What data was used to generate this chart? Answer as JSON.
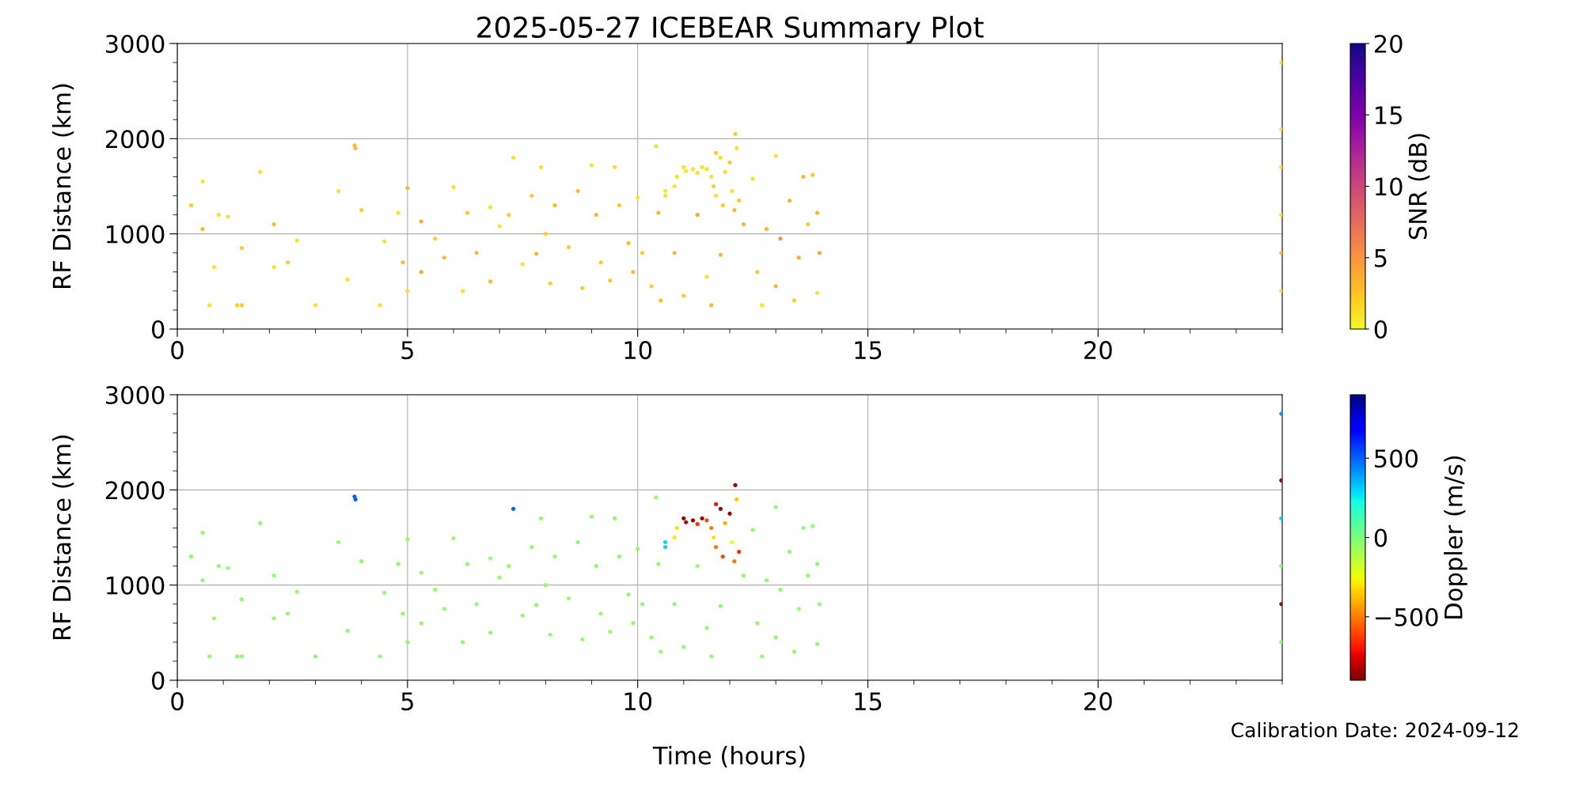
{
  "chart_data": [
    {
      "type": "scatter",
      "title": "2025-05-27 ICEBEAR Summary Plot",
      "ylabel": "RF Distance (km)",
      "clabel": "SNR (dB)",
      "xlim": [
        0,
        24
      ],
      "xticks": [
        0,
        5,
        10,
        15,
        20
      ],
      "ylim": [
        0,
        3000
      ],
      "yticks": [
        0,
        1000,
        2000,
        3000
      ],
      "clim": [
        0,
        20
      ],
      "cticks": [
        0,
        5,
        10,
        15,
        20
      ],
      "grid": true,
      "x": [
        0.3,
        0.55,
        0.55,
        0.7,
        0.8,
        0.9,
        1.1,
        1.3,
        1.4,
        1.4,
        1.8,
        2.1,
        2.1,
        2.4,
        2.6,
        3.0,
        3.5,
        3.7,
        3.85,
        3.87,
        4.0,
        4.4,
        4.5,
        4.8,
        4.9,
        5.0,
        5.0,
        5.3,
        5.3,
        5.6,
        5.8,
        6.0,
        6.2,
        6.3,
        6.5,
        6.8,
        6.8,
        7.0,
        7.2,
        7.3,
        7.5,
        7.7,
        7.8,
        7.9,
        8.0,
        8.1,
        8.2,
        8.5,
        8.7,
        8.8,
        9.0,
        9.1,
        9.2,
        9.4,
        9.5,
        9.6,
        9.8,
        9.9,
        10.0,
        10.1,
        10.3,
        10.4,
        10.45,
        10.6,
        10.6,
        10.8,
        10.85,
        11.0,
        11.05,
        11.2,
        11.3,
        11.4,
        11.5,
        11.6,
        11.65,
        11.7,
        11.7,
        11.8,
        11.85,
        11.9,
        12.0,
        12.05,
        12.1,
        12.12,
        12.15,
        12.2,
        10.5,
        10.8,
        11.0,
        11.3,
        11.5,
        11.6,
        11.8,
        12.3,
        12.5,
        12.6,
        12.7,
        12.8,
        13.0,
        13.0,
        13.1,
        13.3,
        13.4,
        13.5,
        13.6,
        13.7,
        13.8,
        13.9,
        13.9,
        13.95,
        23.98,
        23.98,
        23.98,
        23.98,
        23.98,
        23.98
      ],
      "values": [
        1300,
        1550,
        1050,
        250,
        650,
        1200,
        1180,
        250,
        250,
        850,
        1650,
        1100,
        650,
        700,
        930,
        250,
        1450,
        520,
        1930,
        1900,
        1250,
        250,
        920,
        1220,
        700,
        1480,
        400,
        1130,
        600,
        950,
        750,
        1490,
        400,
        1220,
        800,
        1280,
        500,
        1080,
        1200,
        1800,
        680,
        1400,
        790,
        1700,
        1000,
        480,
        1300,
        860,
        1450,
        430,
        1720,
        1200,
        700,
        510,
        1700,
        1300,
        900,
        600,
        1380,
        800,
        450,
        1920,
        1220,
        1400,
        1450,
        1500,
        1600,
        1700,
        1660,
        1680,
        1640,
        1700,
        1680,
        1600,
        1500,
        1850,
        1400,
        1800,
        1300,
        1650,
        1750,
        1450,
        1250,
        2050,
        1900,
        1350,
        300,
        800,
        350,
        1200,
        550,
        250,
        780,
        1100,
        1580,
        600,
        250,
        1050,
        1820,
        450,
        950,
        1350,
        300,
        750,
        1600,
        1100,
        1620,
        1220,
        380,
        800,
        2800,
        2100,
        800,
        1700,
        400,
        1200
      ],
      "cvalues": [
        2,
        1,
        3,
        1,
        1,
        1,
        1,
        2,
        2,
        2,
        1,
        3,
        1,
        2,
        1,
        1,
        1,
        1,
        3,
        3,
        2,
        1,
        1,
        1,
        3,
        3,
        1,
        4,
        4,
        2,
        3,
        1,
        1,
        2,
        3,
        1,
        3,
        1,
        2,
        1,
        1,
        2,
        3,
        1,
        2,
        2,
        3,
        2,
        3,
        2,
        1,
        3,
        2,
        2,
        1,
        2,
        3,
        3,
        1,
        2,
        2,
        1,
        3,
        1,
        1,
        1,
        1,
        1,
        1,
        1,
        1,
        1,
        1,
        1,
        2,
        2,
        1,
        1,
        2,
        1,
        2,
        1,
        3,
        2,
        1,
        2,
        3,
        3,
        2,
        4,
        1,
        3,
        3,
        3,
        1,
        2,
        1,
        3,
        1,
        3,
        5,
        3,
        2,
        4,
        3,
        2,
        2,
        3,
        1,
        4,
        1,
        1,
        3,
        1,
        1,
        1
      ]
    },
    {
      "type": "scatter",
      "xlabel": "Time (hours)",
      "ylabel": "RF Distance (km)",
      "clabel": "Doppler (m/s)",
      "xlim": [
        0,
        24
      ],
      "xticks": [
        0,
        5,
        10,
        15,
        20
      ],
      "ylim": [
        0,
        3000
      ],
      "yticks": [
        0,
        1000,
        2000,
        3000
      ],
      "clim": [
        -900,
        900
      ],
      "cticks": [
        {
          "value": -500,
          "label": "−500"
        },
        0,
        500
      ],
      "grid": true,
      "annotations": [
        "Calibration Date: 2024-09-12"
      ],
      "x": [
        0.3,
        0.55,
        0.55,
        0.7,
        0.8,
        0.9,
        1.1,
        1.3,
        1.4,
        1.4,
        1.8,
        2.1,
        2.1,
        2.4,
        2.6,
        3.0,
        3.5,
        3.7,
        3.85,
        3.87,
        4.0,
        4.4,
        4.5,
        4.8,
        4.9,
        5.0,
        5.0,
        5.3,
        5.3,
        5.6,
        5.8,
        6.0,
        6.2,
        6.3,
        6.5,
        6.8,
        6.8,
        7.0,
        7.2,
        7.3,
        7.5,
        7.7,
        7.8,
        7.9,
        8.0,
        8.1,
        8.2,
        8.5,
        8.7,
        8.8,
        9.0,
        9.1,
        9.2,
        9.4,
        9.5,
        9.6,
        9.8,
        9.9,
        10.0,
        10.1,
        10.3,
        10.4,
        10.45,
        10.6,
        10.6,
        10.8,
        10.85,
        11.0,
        11.05,
        11.2,
        11.3,
        11.4,
        11.5,
        11.6,
        11.65,
        11.7,
        11.7,
        11.8,
        11.85,
        11.9,
        12.0,
        12.05,
        12.1,
        12.12,
        12.15,
        12.2,
        10.5,
        10.8,
        11.0,
        11.3,
        11.5,
        11.6,
        11.8,
        12.3,
        12.5,
        12.6,
        12.7,
        12.8,
        13.0,
        13.0,
        13.1,
        13.3,
        13.4,
        13.5,
        13.6,
        13.7,
        13.8,
        13.9,
        13.9,
        13.95,
        23.98,
        23.98,
        23.98,
        23.98,
        23.98,
        23.98
      ],
      "values": [
        1300,
        1550,
        1050,
        250,
        650,
        1200,
        1180,
        250,
        250,
        850,
        1650,
        1100,
        650,
        700,
        930,
        250,
        1450,
        520,
        1930,
        1900,
        1250,
        250,
        920,
        1220,
        700,
        1480,
        400,
        1130,
        600,
        950,
        750,
        1490,
        400,
        1220,
        800,
        1280,
        500,
        1080,
        1200,
        1800,
        680,
        1400,
        790,
        1700,
        1000,
        480,
        1300,
        860,
        1450,
        430,
        1720,
        1200,
        700,
        510,
        1700,
        1300,
        900,
        600,
        1380,
        800,
        450,
        1920,
        1220,
        1400,
        1450,
        1500,
        1600,
        1700,
        1660,
        1680,
        1640,
        1700,
        1680,
        1600,
        1500,
        1850,
        1400,
        1800,
        1300,
        1650,
        1750,
        1450,
        1250,
        2050,
        1900,
        1350,
        300,
        800,
        350,
        1200,
        550,
        250,
        780,
        1100,
        1580,
        600,
        250,
        1050,
        1820,
        450,
        950,
        1350,
        300,
        750,
        1600,
        1100,
        1620,
        1220,
        380,
        800,
        2800,
        2100,
        800,
        1700,
        400,
        1200
      ],
      "cvalues": [
        -50,
        -40,
        -30,
        -50,
        -50,
        -40,
        -50,
        -40,
        -40,
        -50,
        -40,
        -50,
        -40,
        -40,
        -50,
        -40,
        -50,
        -40,
        500,
        500,
        -40,
        -40,
        -50,
        -50,
        -40,
        -50,
        -40,
        -50,
        -50,
        -40,
        -40,
        -50,
        -40,
        -40,
        -50,
        -40,
        -40,
        -40,
        -50,
        500,
        -40,
        -40,
        -50,
        -40,
        -40,
        -40,
        -50,
        -50,
        -40,
        -40,
        -50,
        -40,
        -40,
        -50,
        -40,
        -40,
        -40,
        -50,
        -40,
        -40,
        -40,
        -50,
        -50,
        300,
        300,
        -300,
        -300,
        -850,
        -850,
        -850,
        -650,
        -850,
        -600,
        -500,
        -300,
        -700,
        -500,
        -850,
        -600,
        -400,
        -850,
        -250,
        -500,
        -850,
        -350,
        -650,
        -40,
        -40,
        -40,
        -50,
        -40,
        -40,
        -40,
        -40,
        -50,
        -50,
        -40,
        -40,
        -50,
        -40,
        -40,
        -40,
        -40,
        -50,
        -40,
        -40,
        -40,
        -40,
        -50,
        -40,
        400,
        -850,
        -850,
        300,
        -40,
        -40
      ]
    }
  ]
}
